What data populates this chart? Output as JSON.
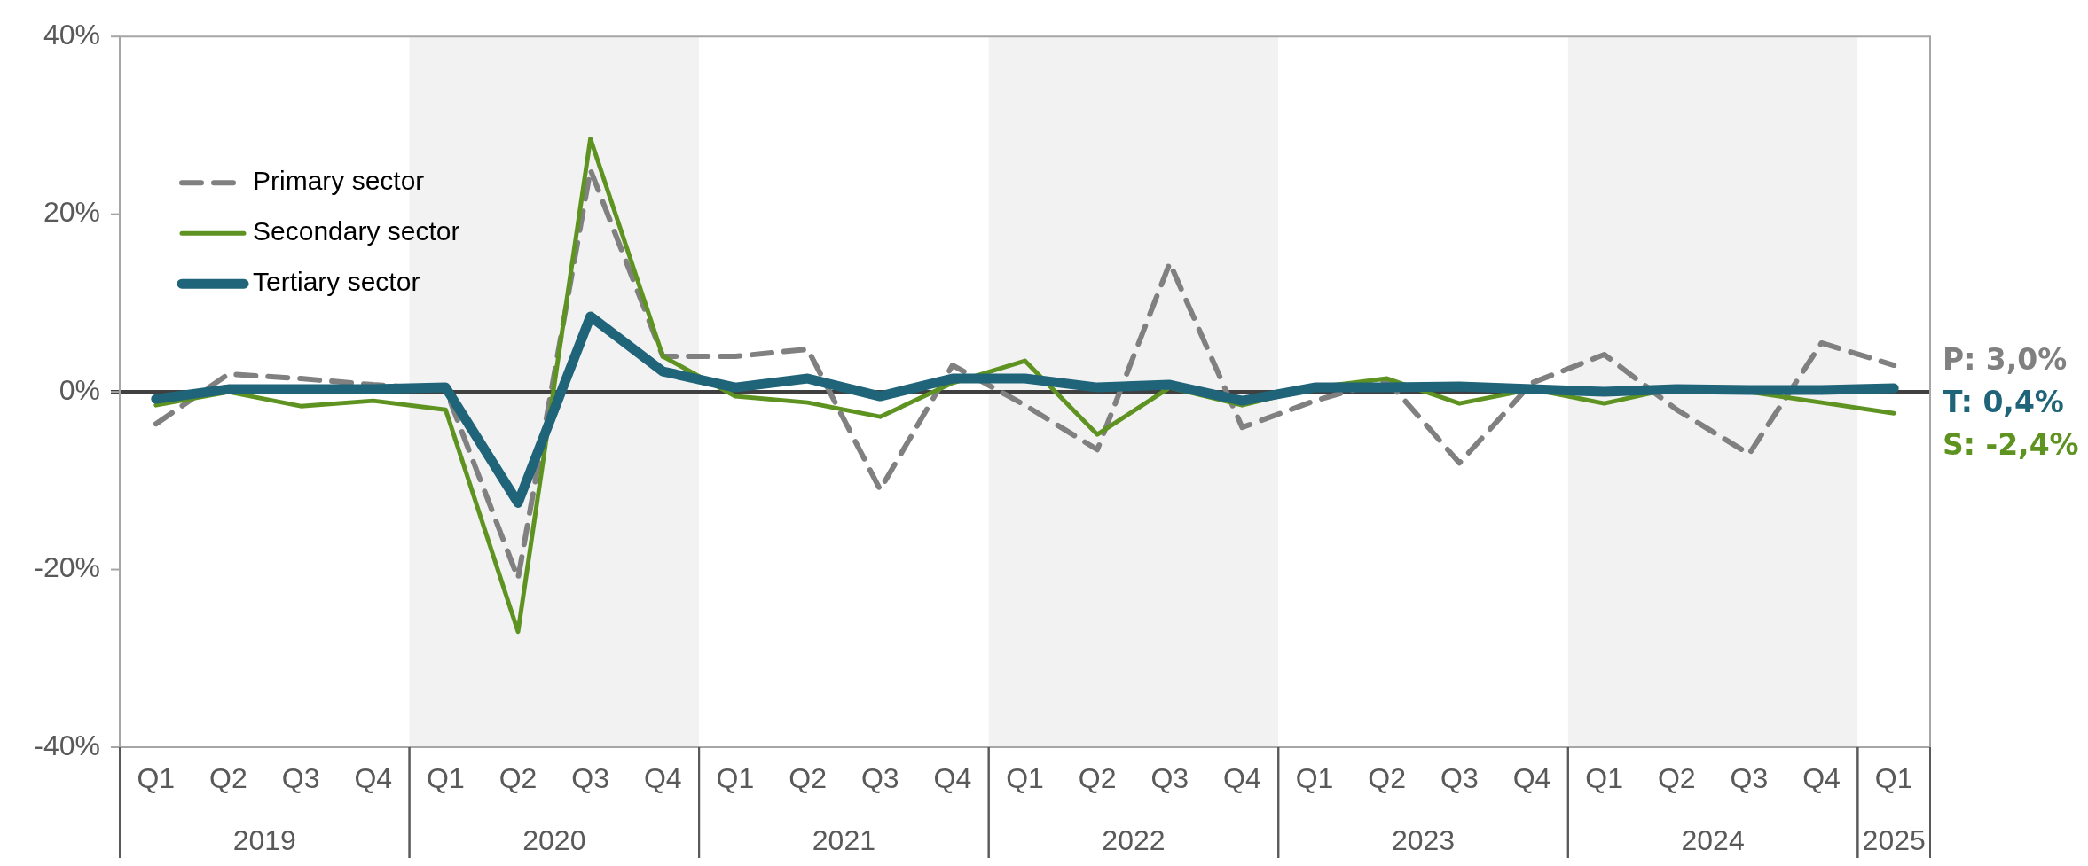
{
  "chart_data": {
    "type": "line",
    "categories": [
      "Q1",
      "Q2",
      "Q3",
      "Q4",
      "Q1",
      "Q2",
      "Q3",
      "Q4",
      "Q1",
      "Q2",
      "Q3",
      "Q4",
      "Q1",
      "Q2",
      "Q3",
      "Q4",
      "Q1",
      "Q2",
      "Q3",
      "Q4",
      "Q1",
      "Q2",
      "Q3",
      "Q4",
      "Q1"
    ],
    "series": [
      {
        "name": "Primary sector",
        "color": "#808080",
        "line_style": "dashed",
        "values": [
          -3.6,
          2,
          1.5,
          0.8,
          0.3,
          -21,
          25,
          4,
          4,
          4.8,
          -11,
          3,
          -1.5,
          -6.5,
          14.5,
          -4,
          -1,
          1.3,
          -8,
          1,
          4.2,
          -2,
          -7,
          5.5,
          3.0
        ]
      },
      {
        "name": "Secondary sector",
        "color": "#5f9321",
        "line_style": "solid",
        "values": [
          -1.5,
          0,
          -1.6,
          -1,
          -2,
          -27,
          28.5,
          4,
          -0.5,
          -1.2,
          -2.8,
          1,
          3.5,
          -4.8,
          0.5,
          -1.5,
          0.5,
          1.5,
          -1.3,
          0.3,
          -1.3,
          0.5,
          0,
          -1.2,
          -2.4
        ]
      },
      {
        "name": "Tertiary sector",
        "color": "#1f6478",
        "line_style": "solid",
        "values": [
          -0.8,
          0.3,
          0.3,
          0.3,
          0.5,
          -12.5,
          8.5,
          2.3,
          0.5,
          1.5,
          -0.5,
          1.5,
          1.5,
          0.5,
          0.8,
          -1,
          0.5,
          0.5,
          0.6,
          0.3,
          0,
          0.3,
          0.2,
          0.2,
          0.4
        ]
      }
    ],
    "ylim": [
      -40,
      40
    ],
    "yticks": [
      {
        "value": -40,
        "label": "-40%"
      },
      {
        "value": -20,
        "label": "-20%"
      },
      {
        "value": 0,
        "label": "0%"
      },
      {
        "value": 20,
        "label": "20%"
      },
      {
        "value": 40,
        "label": "40%"
      }
    ],
    "ref_lines": [
      {
        "axis": "y",
        "value": 0,
        "color": "#404040"
      }
    ],
    "annotations": [
      "P: 3,0%",
      "T: 0,4%",
      "S: -2,4%",
      "2019",
      "2020",
      "2021",
      "2022",
      "2023",
      "2024",
      "2025"
    ],
    "legend": "top left",
    "grid": false,
    "marker": "none"
  }
}
